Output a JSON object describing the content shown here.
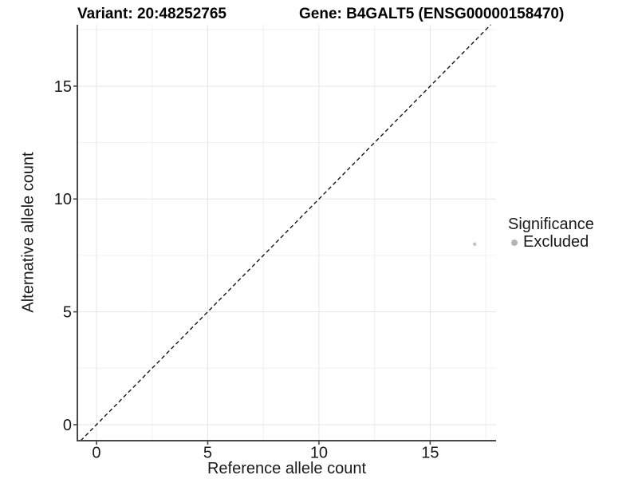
{
  "chart_data": {
    "type": "scatter",
    "title_left": "Variant: 20:48252765",
    "title_right": "Gene: B4GALT5 (ENSG00000158470)",
    "xlabel": "Reference allele count",
    "ylabel": "Alternative allele count",
    "xlim": [
      -0.86,
      17.96
    ],
    "ylim": [
      -0.71,
      17.72
    ],
    "xticks": [
      0,
      5,
      10,
      15
    ],
    "yticks": [
      0,
      5,
      10,
      15
    ],
    "xminor": [
      2.5,
      7.5,
      12.5,
      17.5
    ],
    "yminor": [
      2.5,
      7.5,
      12.5,
      17.5
    ],
    "grid": true,
    "legend_position": "right",
    "series": [
      {
        "name": "Excluded",
        "color": "#c2c2c2",
        "points": [
          {
            "x": 17,
            "y": 8
          }
        ]
      }
    ],
    "reference_line": {
      "equation": "y = x",
      "style": "dashed",
      "color": "#141414"
    },
    "legend": {
      "title": "Significance",
      "entries": [
        {
          "label": "Excluded",
          "color": "#b5b5b5"
        }
      ]
    },
    "colors": {
      "grid_major": "#e5e5e5",
      "grid_minor": "#f0f0f0",
      "axis_line": "#484848",
      "tick_text": "#1a1a1a"
    }
  }
}
